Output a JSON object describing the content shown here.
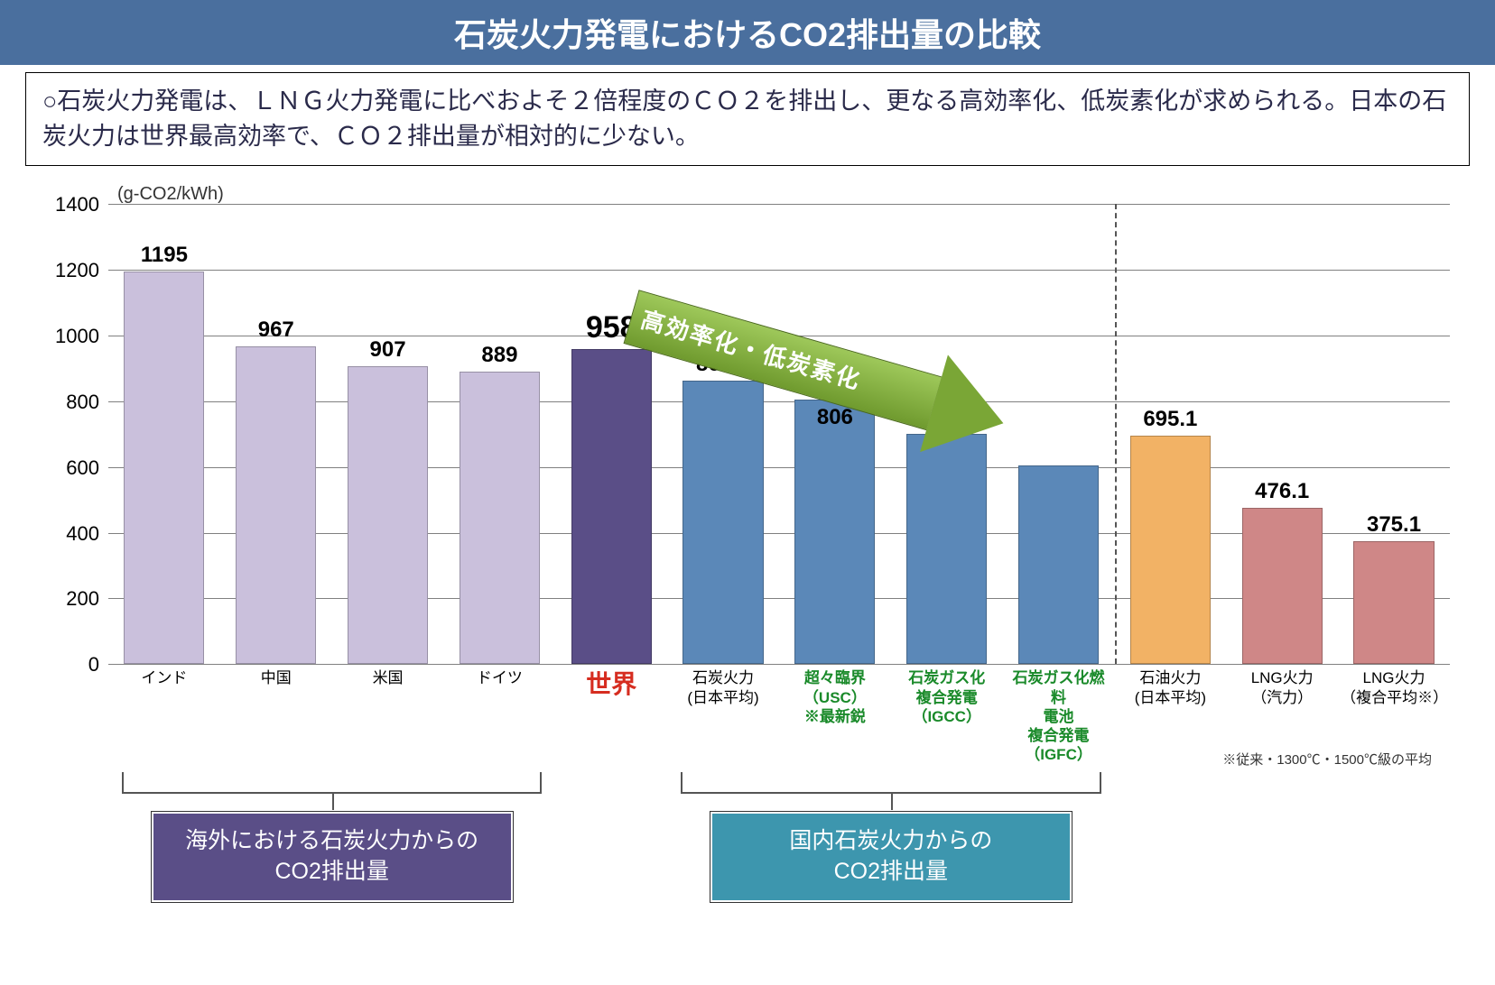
{
  "title": "石炭火力発電におけるCO2排出量の比較",
  "description": "○石炭火力発電は、ＬＮＧ火力発電に比べおよそ２倍程度のＣＯ２を排出し、更なる高効率化、低炭素化が求められる。日本の石炭火力は世界最高効率で、ＣＯ２排出量が相対的に少ない。",
  "chart": {
    "type": "bar",
    "y_unit": "(g-CO2/kWh)",
    "ylim": [
      0,
      1400
    ],
    "ytick_step": 200,
    "grid_color": "#808080",
    "background_color": "#ffffff",
    "divider_after_index": 9,
    "arrow_label": "高効率化・低炭素化",
    "bars": [
      {
        "label": "インド",
        "value": 1195,
        "value_text": "1195",
        "color": "#cac0dc",
        "label_style": "normal"
      },
      {
        "label": "中国",
        "value": 967,
        "value_text": "967",
        "color": "#cac0dc",
        "label_style": "normal"
      },
      {
        "label": "米国",
        "value": 907,
        "value_text": "907",
        "color": "#cac0dc",
        "label_style": "normal"
      },
      {
        "label": "ドイツ",
        "value": 889,
        "value_text": "889",
        "color": "#cac0dc",
        "label_style": "normal"
      },
      {
        "label": "世界",
        "value": 958,
        "value_text": "958",
        "color": "#5a4e87",
        "label_style": "world",
        "big_label": true
      },
      {
        "label": "石炭火力\n(日本平均)",
        "value": 863.8,
        "value_text": "863.8",
        "color": "#5b88b8",
        "label_style": "normal"
      },
      {
        "label": "超々臨界\n（USC）\n※最新鋭",
        "value": 806,
        "value_text": "806",
        "color": "#5b88b8",
        "label_style": "green",
        "value_inside": true
      },
      {
        "label": "石炭ガス化\n複合発電\n（IGCC）",
        "value": 700,
        "value_text": "",
        "color": "#5b88b8",
        "label_style": "green"
      },
      {
        "label": "石炭ガス化燃料\n電池\n複合発電\n（IGFC）",
        "value": 605,
        "value_text": "",
        "color": "#5b88b8",
        "label_style": "green"
      },
      {
        "label": "石油火力\n(日本平均)",
        "value": 695.1,
        "value_text": "695.1",
        "color": "#f2b265",
        "label_style": "normal"
      },
      {
        "label": "LNG火力\n（汽力）",
        "value": 476.1,
        "value_text": "476.1",
        "color": "#cf8787",
        "label_style": "normal"
      },
      {
        "label": "LNG火力\n（複合平均※）",
        "value": 375.1,
        "value_text": "375.1",
        "color": "#cf8787",
        "label_style": "normal"
      }
    ],
    "footnote": "※従来・1300℃・1500℃級の平均",
    "groups": [
      {
        "range": [
          0,
          3
        ],
        "label": "海外における石炭火力からの\nCO2排出量",
        "color": "purple"
      },
      {
        "range": [
          5,
          8
        ],
        "label": "国内石炭火力からの\nCO2排出量",
        "color": "teal"
      }
    ]
  }
}
